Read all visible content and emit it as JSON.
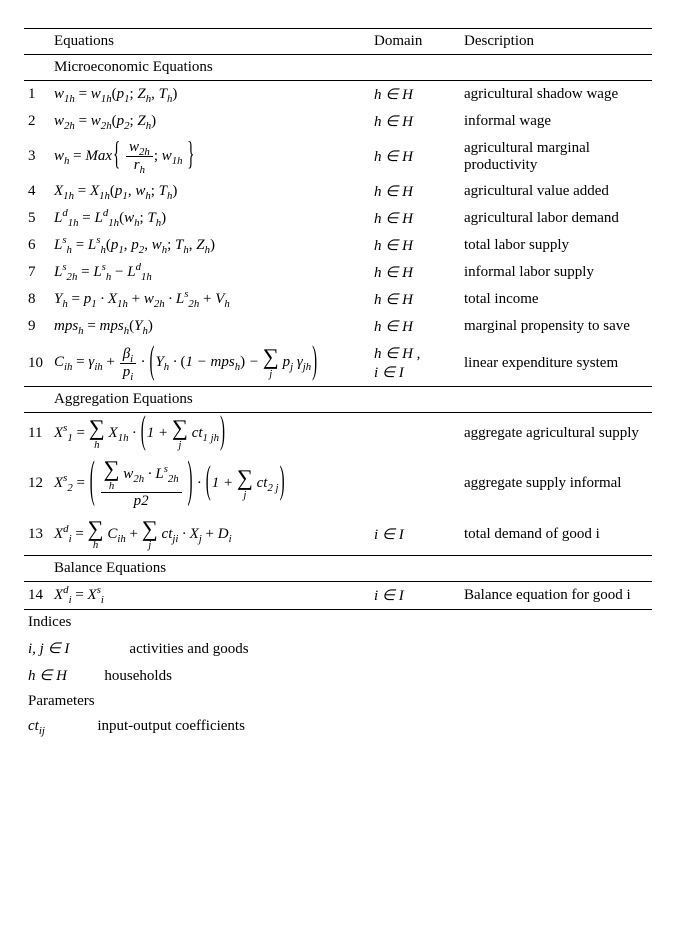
{
  "header": {
    "equations": "Equations",
    "domain": "Domain",
    "description": "Description"
  },
  "sections": {
    "micro": "Microeconomic Equations",
    "agg": "Aggregation Equations",
    "bal": "Balance Equations"
  },
  "rows": {
    "r1": {
      "num": "1",
      "domain": "h ∈ H",
      "desc": "agricultural shadow wage"
    },
    "r2": {
      "num": "2",
      "domain": "h ∈ H",
      "desc": "informal wage"
    },
    "r3": {
      "num": "3",
      "domain": "h ∈ H",
      "desc": "agricultural marginal productivity"
    },
    "r4": {
      "num": "4",
      "domain": "h ∈ H",
      "desc": "agricultural value added"
    },
    "r5": {
      "num": "5",
      "domain": "h ∈ H",
      "desc": "agricultural labor demand"
    },
    "r6": {
      "num": "6",
      "domain": "h ∈ H",
      "desc": "total labor supply"
    },
    "r7": {
      "num": "7",
      "domain": "h ∈ H",
      "desc": "informal labor supply"
    },
    "r8": {
      "num": "8",
      "domain": "h ∈ H",
      "desc": "total income"
    },
    "r9": {
      "num": "9",
      "domain": "h ∈ H",
      "desc": "marginal propensity to save"
    },
    "r10": {
      "num": "10",
      "domain1": "h ∈ H ,",
      "domain2": "i ∈ I",
      "desc": "linear expenditure system"
    },
    "r11": {
      "num": "11",
      "domain": "",
      "desc": "aggregate agricultural supply"
    },
    "r12": {
      "num": "12",
      "domain": "",
      "desc": "aggregate supply informal"
    },
    "r13": {
      "num": "13",
      "domain": "i ∈ I",
      "desc": "total demand of good i"
    },
    "r14": {
      "num": "14",
      "domain": "i ∈ I",
      "desc": "Balance equation for good i"
    }
  },
  "footer": {
    "indices_h": "Indices",
    "idx1_sym": "i, j ∈ I",
    "idx1_desc": "activities and goods",
    "idx2_sym": "h ∈ H",
    "idx2_desc": "households",
    "params_h": "Parameters",
    "p1_desc": "input-output coefficients"
  }
}
